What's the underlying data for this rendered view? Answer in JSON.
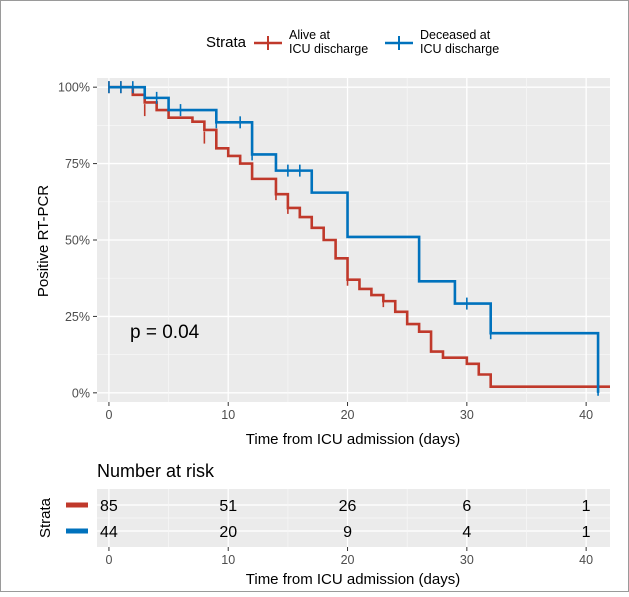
{
  "legend": {
    "title": "Strata",
    "items": [
      {
        "label_line1": "Alive at",
        "label_line2": "ICU discharge",
        "color": "#c0392b"
      },
      {
        "label_line1": "Deceased at",
        "label_line2": "ICU discharge",
        "color": "#0072bd"
      }
    ]
  },
  "annotation": "p = 0.04",
  "risk_table": {
    "title": "Number at risk",
    "ylabel": "Strata",
    "xlabel": "Time from ICU admission (days)",
    "times": [
      0,
      10,
      20,
      30,
      40
    ],
    "rows": [
      {
        "color": "#c0392b",
        "values": [
          "85",
          "51",
          "26",
          "6",
          "1"
        ]
      },
      {
        "color": "#0072bd",
        "values": [
          "44",
          "20",
          "9",
          "4",
          "1"
        ]
      }
    ]
  },
  "chart_data": {
    "type": "line",
    "subtype": "kaplan-meier step",
    "xlabel": "Time from ICU admission (days)",
    "ylabel": "Positive RT-PCR",
    "xlim": [
      -1,
      42
    ],
    "ylim": [
      -0.03,
      1.03
    ],
    "xticks": [
      0,
      10,
      20,
      30,
      40
    ],
    "yticks": [
      0,
      0.25,
      0.5,
      0.75,
      1.0
    ],
    "ytick_labels": [
      "0%",
      "25%",
      "50%",
      "75%",
      "100%"
    ],
    "grid": true,
    "legend_position": "top",
    "series": [
      {
        "name": "Alive at ICU discharge",
        "color": "#c0392b",
        "steps": [
          [
            0,
            1.0
          ],
          [
            2,
            0.975
          ],
          [
            3,
            0.95
          ],
          [
            4,
            0.925
          ],
          [
            5,
            0.9
          ],
          [
            7,
            0.887
          ],
          [
            8,
            0.86
          ],
          [
            9,
            0.8
          ],
          [
            10,
            0.775
          ],
          [
            11,
            0.75
          ],
          [
            12,
            0.7
          ],
          [
            14,
            0.65
          ],
          [
            15,
            0.605
          ],
          [
            16,
            0.575
          ],
          [
            17,
            0.54
          ],
          [
            18,
            0.5
          ],
          [
            19,
            0.44
          ],
          [
            20,
            0.37
          ],
          [
            21,
            0.34
          ],
          [
            22,
            0.32
          ],
          [
            23,
            0.3
          ],
          [
            24,
            0.265
          ],
          [
            25,
            0.225
          ],
          [
            26,
            0.2
          ],
          [
            27,
            0.135
          ],
          [
            28,
            0.115
          ],
          [
            30,
            0.095
          ],
          [
            31,
            0.06
          ],
          [
            32,
            0.02
          ],
          [
            42,
            0.02
          ]
        ],
        "censor_marks": [
          [
            0,
            1.0
          ],
          [
            1,
            1.0
          ],
          [
            3,
            0.925
          ],
          [
            8,
            0.835
          ],
          [
            14,
            0.65
          ],
          [
            15,
            0.605
          ],
          [
            20,
            0.37
          ],
          [
            23,
            0.3
          ]
        ]
      },
      {
        "name": "Deceased at ICU discharge",
        "color": "#0072bd",
        "steps": [
          [
            0,
            1.0
          ],
          [
            3,
            0.965
          ],
          [
            5,
            0.925
          ],
          [
            9,
            0.885
          ],
          [
            12,
            0.78
          ],
          [
            14,
            0.727
          ],
          [
            17,
            0.655
          ],
          [
            20,
            0.51
          ],
          [
            26,
            0.365
          ],
          [
            29,
            0.292
          ],
          [
            32,
            0.195
          ],
          [
            41,
            0.0
          ],
          [
            41,
            0.0
          ]
        ],
        "censor_marks": [
          [
            0,
            1.0
          ],
          [
            1,
            1.0
          ],
          [
            2,
            1.0
          ],
          [
            4,
            0.965
          ],
          [
            6,
            0.925
          ],
          [
            9,
            0.885
          ],
          [
            11,
            0.885
          ],
          [
            12,
            0.78
          ],
          [
            15,
            0.727
          ],
          [
            16,
            0.727
          ],
          [
            30,
            0.292
          ],
          [
            32,
            0.195
          ],
          [
            41,
            0.01
          ]
        ]
      }
    ]
  }
}
